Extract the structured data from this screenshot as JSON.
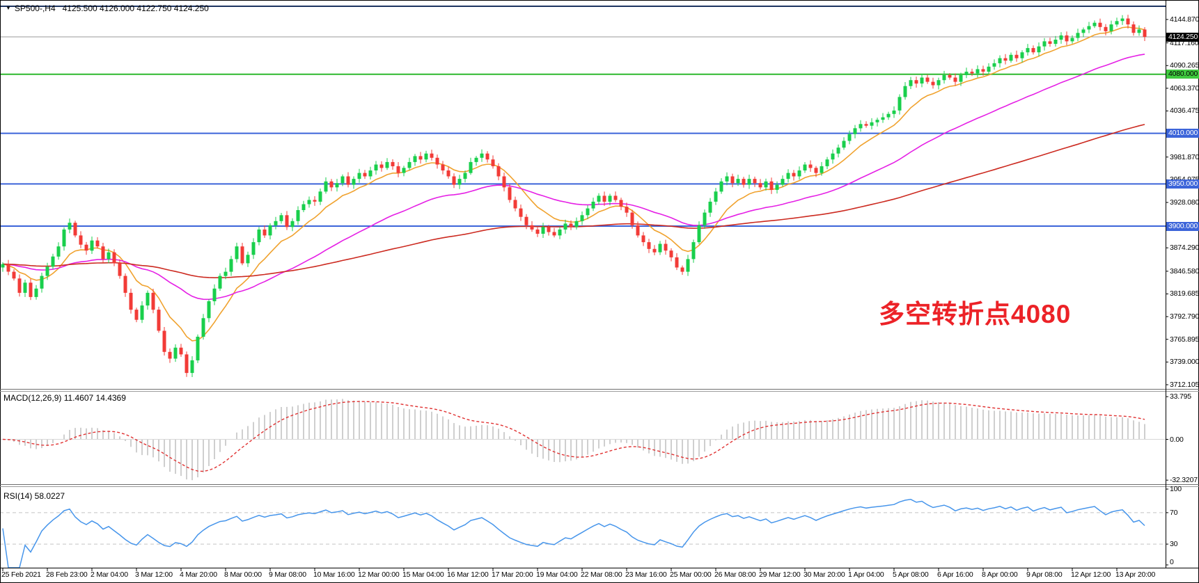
{
  "header": {
    "symbol_period": "SP500-,H4",
    "ohlc_readout": "4125.500 4126.000 4122.750 4124.250",
    "dropdown_icon": "triangle-down"
  },
  "annotation": {
    "text": "多空转折点4080",
    "color": "#ec2227"
  },
  "macd_panel": {
    "label": "MACD(12,26,9) 11.4607 14.4369",
    "scale_labels": [
      {
        "text": "33.795",
        "value": 33.795
      },
      {
        "text": "0.00",
        "value": 0
      },
      {
        "text": "-32.3207",
        "value": -32.3207
      }
    ]
  },
  "rsi_panel": {
    "label": "RSI(14) 58.0227",
    "scale_labels": [
      {
        "text": "100",
        "value": 100
      },
      {
        "text": "70",
        "value": 70
      },
      {
        "text": "30",
        "value": 30
      },
      {
        "text": "0",
        "value": 0
      }
    ],
    "dashed_levels": [
      70,
      30
    ]
  },
  "price_axis": {
    "scale_labels": [
      {
        "text": "4144.870",
        "value": 4144.87
      },
      {
        "text": "4117.160",
        "value": 4117.16
      },
      {
        "text": "4090.265",
        "value": 4090.265
      },
      {
        "text": "4063.370",
        "value": 4063.37
      },
      {
        "text": "4036.475",
        "value": 4036.475
      },
      {
        "text": "3981.870",
        "value": 3981.87
      },
      {
        "text": "3954.975",
        "value": 3954.975
      },
      {
        "text": "3928.080",
        "value": 3928.08
      },
      {
        "text": "3874.290",
        "value": 3874.29
      },
      {
        "text": "3846.580",
        "value": 3846.58
      },
      {
        "text": "3819.685",
        "value": 3819.685
      },
      {
        "text": "3792.790",
        "value": 3792.79
      },
      {
        "text": "3765.895",
        "value": 3765.895
      },
      {
        "text": "3739.000",
        "value": 3739.0
      },
      {
        "text": "3712.105",
        "value": 3712.105
      }
    ],
    "current_price_tag": {
      "text": "4124.250",
      "value": 4124.25,
      "bg": "#000000",
      "fg": "#ffffff"
    },
    "level_tags": [
      {
        "text": "4080.000",
        "value": 4080.0,
        "bg": "#3fca3f",
        "fg": "#000000"
      },
      {
        "text": "4010.000",
        "value": 4010.0,
        "bg": "#3c64d9",
        "fg": "#ffffff"
      },
      {
        "text": "3950.000",
        "value": 3950.0,
        "bg": "#3c64d9",
        "fg": "#ffffff"
      },
      {
        "text": "3900.000",
        "value": 3900.0,
        "bg": "#3c64d9",
        "fg": "#ffffff"
      }
    ]
  },
  "chart_data": {
    "type": "candlestick",
    "symbol": "SP500-",
    "timeframe": "H4",
    "title": "SP500-,H4 4125.500 4126.000 4122.750 4124.250",
    "x_labels": [
      "25 Feb 2021",
      "28 Feb 23:00",
      "2 Mar 04:00",
      "3 Mar 12:00",
      "4 Mar 20:00",
      "8 Mar 00:00",
      "9 Mar 08:00",
      "10 Mar 16:00",
      "12 Mar 00:00",
      "15 Mar 04:00",
      "16 Mar 12:00",
      "17 Mar 20:00",
      "19 Mar 04:00",
      "22 Mar 08:00",
      "23 Mar 16:00",
      "25 Mar 00:00",
      "26 Mar 08:00",
      "29 Mar 12:00",
      "30 Mar 20:00",
      "1 Apr 04:00",
      "5 Apr 08:00",
      "6 Apr 16:00",
      "8 Apr 00:00",
      "9 Apr 08:00",
      "12 Apr 12:00",
      "13 Apr 20:00"
    ],
    "candles_per_x_label": 8,
    "visible_price_range": [
      3712.105,
      4144.87
    ],
    "current_price": 4124.25,
    "closes": [
      3855,
      3846,
      3838,
      3821,
      3833,
      3816,
      3826,
      3841,
      3852,
      3864,
      3876,
      3896,
      3904,
      3889,
      3878,
      3871,
      3883,
      3876,
      3861,
      3869,
      3856,
      3841,
      3821,
      3801,
      3789,
      3806,
      3821,
      3801,
      3776,
      3751,
      3743,
      3756,
      3748,
      3726,
      3741,
      3769,
      3791,
      3811,
      3826,
      3841,
      3846,
      3861,
      3876,
      3856,
      3866,
      3881,
      3896,
      3889,
      3901,
      3906,
      3913,
      3899,
      3906,
      3919,
      3926,
      3931,
      3929,
      3941,
      3953,
      3946,
      3951,
      3959,
      3949,
      3956,
      3963,
      3959,
      3966,
      3973,
      3969,
      3976,
      3971,
      3963,
      3969,
      3976,
      3983,
      3979,
      3986,
      3981,
      3973,
      3966,
      3959,
      3949,
      3956,
      3963,
      3976,
      3981,
      3986,
      3979,
      3971,
      3959,
      3946,
      3931,
      3921,
      3911,
      3901,
      3896,
      3891,
      3899,
      3893,
      3889,
      3896,
      3903,
      3899,
      3906,
      3913,
      3921,
      3929,
      3936,
      3929,
      3936,
      3931,
      3923,
      3916,
      3901,
      3889,
      3881,
      3873,
      3869,
      3879,
      3871,
      3863,
      3851,
      3846,
      3861,
      3881,
      3901,
      3916,
      3929,
      3941,
      3953,
      3959,
      3951,
      3956,
      3949,
      3956,
      3951,
      3946,
      3953,
      3943,
      3949,
      3956,
      3963,
      3959,
      3966,
      3973,
      3969,
      3963,
      3971,
      3979,
      3986,
      3993,
      4001,
      4009,
      4016,
      4021,
      4019,
      4023,
      4026,
      4029,
      4033,
      4037,
      4053,
      4066,
      4073,
      4069,
      4076,
      4071,
      4067,
      4073,
      4079,
      4076,
      4071,
      4079,
      4083,
      4081,
      4086,
      4083,
      4089,
      4093,
      4099,
      4096,
      4103,
      4099,
      4106,
      4111,
      4106,
      4113,
      4119,
      4116,
      4121,
      4126,
      4119,
      4123,
      4129,
      4133,
      4137,
      4141,
      4136,
      4131,
      4139,
      4143,
      4146,
      4139,
      4129,
      4133,
      4124.25
    ],
    "horizontal_lines": [
      {
        "price": 4160.5,
        "color": "#1d3461",
        "width": 2,
        "name": "upper-navy-line"
      },
      {
        "price": 4080.0,
        "color": "#2eb82e",
        "width": 2,
        "name": "green-4080-line"
      },
      {
        "price": 4010.0,
        "color": "#3c64d9",
        "width": 2,
        "name": "blue-4010-line"
      },
      {
        "price": 3950.0,
        "color": "#3c64d9",
        "width": 2,
        "name": "blue-3950-line"
      },
      {
        "price": 3900.0,
        "color": "#3c64d9",
        "width": 2,
        "name": "blue-3900-line"
      }
    ],
    "moving_averages": [
      {
        "name": "fast-ma",
        "period": 10,
        "color": "#f0a22e"
      },
      {
        "name": "medium-ma",
        "period": 40,
        "color": "#e520e5"
      },
      {
        "name": "slow-ma",
        "period": 130,
        "color": "#cc2a20"
      }
    ],
    "indicators": [
      {
        "name": "MACD",
        "params": [
          12,
          26,
          9
        ],
        "current_values": [
          11.4607,
          14.4369
        ],
        "scale": [
          33.795,
          0.0,
          -32.3207
        ],
        "histogram_color": "#b5b5b5",
        "signal_color": "#e03131"
      },
      {
        "name": "RSI",
        "params": [
          14
        ],
        "current_value": 58.0227,
        "scale": [
          100,
          70,
          30,
          0
        ],
        "line_color": "#4695eb"
      }
    ],
    "colors": {
      "bull": "#19cf4c",
      "bear": "#f23b37",
      "current_price_line": "#999999"
    }
  }
}
